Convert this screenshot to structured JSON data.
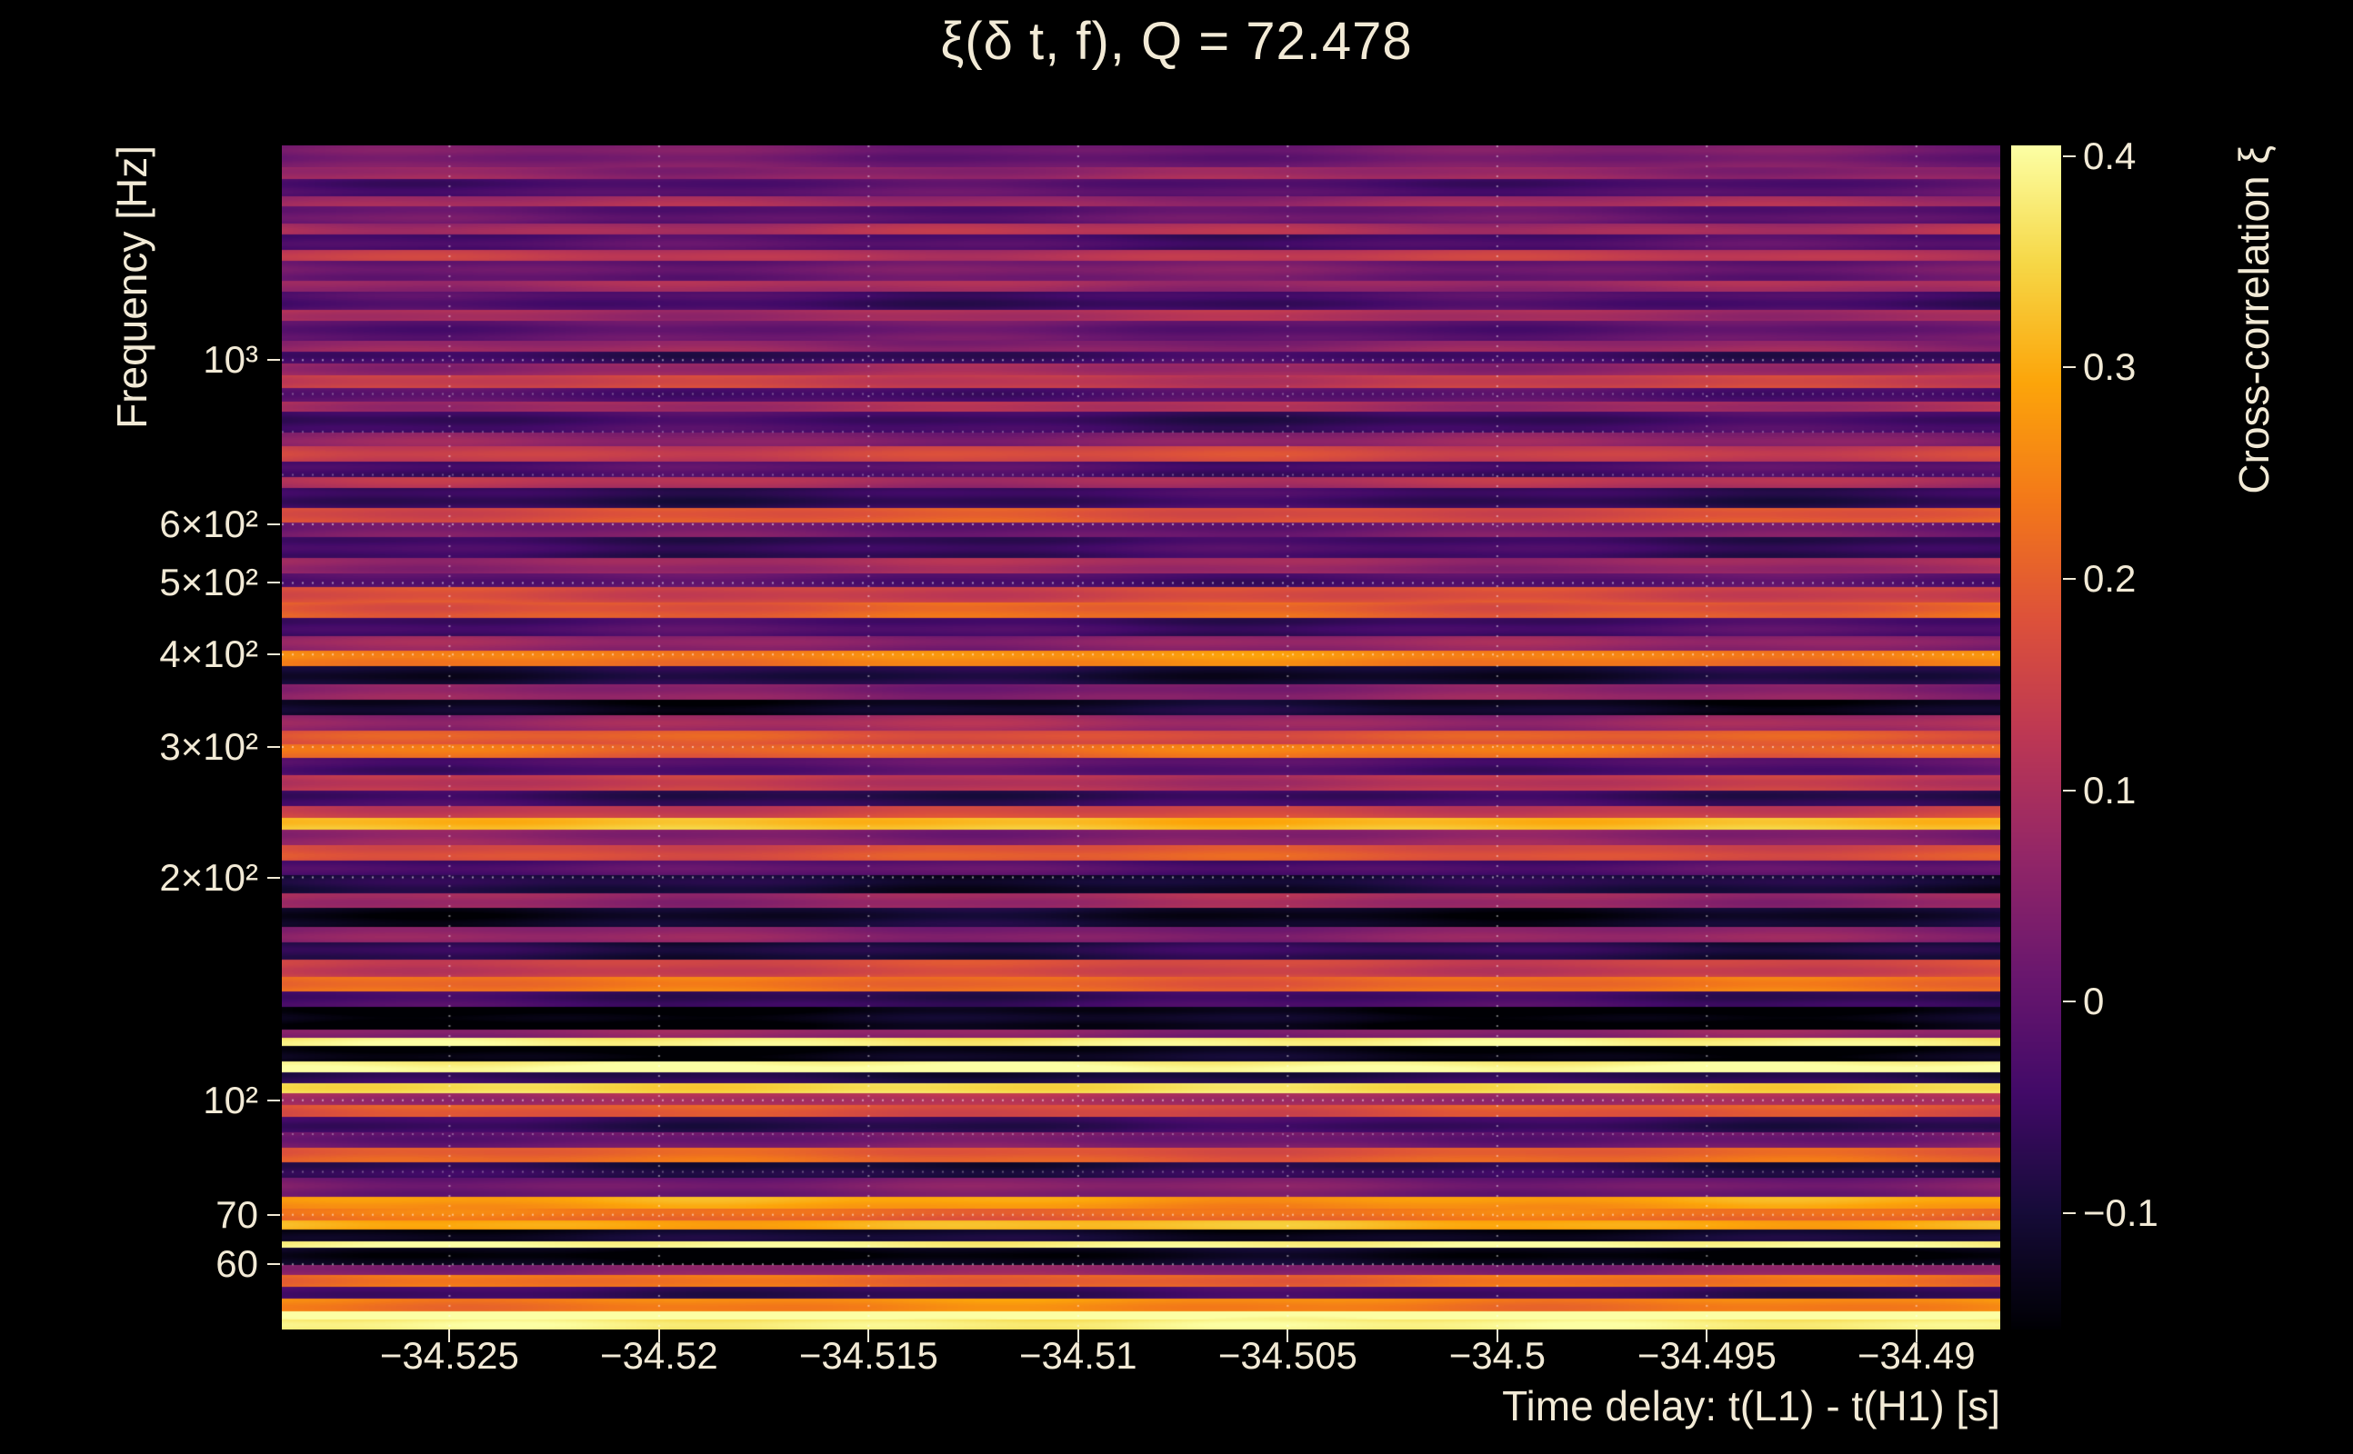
{
  "figure": {
    "background": "#000000",
    "label_color": "#f2ead6"
  },
  "chart_data": {
    "type": "heatmap",
    "title": "ξ(δ t, f), Q = 72.478",
    "xlabel": "Time delay: t(L1) - t(H1) [s]",
    "ylabel": "Frequency [Hz]",
    "colorbar_label": "Cross-correlation ξ",
    "x_range": [
      -34.529,
      -34.488
    ],
    "y_range_hz": [
      49,
      1950
    ],
    "y_scale": "log",
    "x_ticks": [
      {
        "v": -34.525,
        "label": "−34.525"
      },
      {
        "v": -34.52,
        "label": "−34.52"
      },
      {
        "v": -34.515,
        "label": "−34.515"
      },
      {
        "v": -34.51,
        "label": "−34.51"
      },
      {
        "v": -34.505,
        "label": "−34.505"
      },
      {
        "v": -34.5,
        "label": "−34.5"
      },
      {
        "v": -34.495,
        "label": "−34.495"
      },
      {
        "v": -34.49,
        "label": "−34.49"
      }
    ],
    "y_ticks": [
      {
        "f": 1000,
        "label": "10³"
      },
      {
        "f": 600,
        "label": "6×10²"
      },
      {
        "f": 500,
        "label": "5×10²"
      },
      {
        "f": 400,
        "label": "4×10²"
      },
      {
        "f": 300,
        "label": "3×10²"
      },
      {
        "f": 200,
        "label": "2×10²"
      },
      {
        "f": 100,
        "label": "10²"
      },
      {
        "f": 70,
        "label": "70"
      },
      {
        "f": 60,
        "label": "60"
      }
    ],
    "y_minor_grid_hz": [
      900,
      800,
      700,
      90,
      80
    ],
    "colorbar_ticks": [
      {
        "v": 0.4,
        "label": "0.4"
      },
      {
        "v": 0.3,
        "label": "0.3"
      },
      {
        "v": 0.2,
        "label": "0.2"
      },
      {
        "v": 0.1,
        "label": "0.1"
      },
      {
        "v": 0.0,
        "label": "0"
      },
      {
        "v": -0.1,
        "label": "−0.1"
      }
    ],
    "color_domain": [
      -0.155,
      0.405
    ],
    "colormap_name": "inferno",
    "colormap_stops": [
      [
        0.0,
        "#000004"
      ],
      [
        0.1,
        "#160b39"
      ],
      [
        0.2,
        "#420a68"
      ],
      [
        0.3,
        "#6a176e"
      ],
      [
        0.4,
        "#932667"
      ],
      [
        0.5,
        "#bc3754"
      ],
      [
        0.6,
        "#dd513a"
      ],
      [
        0.7,
        "#f37819"
      ],
      [
        0.8,
        "#fca50a"
      ],
      [
        0.9,
        "#f6d746"
      ],
      [
        1.0,
        "#fcffa4"
      ]
    ],
    "grid": {
      "color": "#ffffff",
      "style": "dotted"
    },
    "rows_format": "[fraction_from_top_of_plot, xi]",
    "xi_rows": [
      [
        0.0,
        0.02
      ],
      [
        0.018,
        0.07
      ],
      [
        0.028,
        -0.02
      ],
      [
        0.043,
        0.08
      ],
      [
        0.051,
        0.0
      ],
      [
        0.066,
        0.1
      ],
      [
        0.075,
        -0.03
      ],
      [
        0.088,
        0.12
      ],
      [
        0.097,
        0.02
      ],
      [
        0.114,
        0.08
      ],
      [
        0.123,
        -0.04
      ],
      [
        0.139,
        0.1
      ],
      [
        0.148,
        0.0
      ],
      [
        0.165,
        0.06
      ],
      [
        0.174,
        -0.05
      ],
      [
        0.184,
        0.08
      ],
      [
        0.194,
        0.14
      ],
      [
        0.205,
        -0.02
      ],
      [
        0.216,
        0.1
      ],
      [
        0.225,
        -0.05
      ],
      [
        0.242,
        0.05
      ],
      [
        0.254,
        0.15
      ],
      [
        0.267,
        -0.03
      ],
      [
        0.28,
        0.1
      ],
      [
        0.289,
        -0.06
      ],
      [
        0.306,
        0.18
      ],
      [
        0.318,
        0.02
      ],
      [
        0.331,
        -0.05
      ],
      [
        0.348,
        0.08
      ],
      [
        0.361,
        -0.02
      ],
      [
        0.373,
        0.16
      ],
      [
        0.386,
        0.2
      ],
      [
        0.399,
        -0.04
      ],
      [
        0.414,
        0.06
      ],
      [
        0.427,
        0.25
      ],
      [
        0.44,
        -0.1
      ],
      [
        0.455,
        0.05
      ],
      [
        0.468,
        -0.12
      ],
      [
        0.481,
        0.08
      ],
      [
        0.494,
        0.18
      ],
      [
        0.506,
        0.22
      ],
      [
        0.517,
        -0.02
      ],
      [
        0.532,
        0.12
      ],
      [
        0.545,
        -0.06
      ],
      [
        0.558,
        0.15
      ],
      [
        0.568,
        0.32
      ],
      [
        0.578,
        0.05
      ],
      [
        0.591,
        0.18
      ],
      [
        0.604,
        -0.02
      ],
      [
        0.616,
        -0.1
      ],
      [
        0.632,
        0.08
      ],
      [
        0.644,
        -0.12
      ],
      [
        0.66,
        0.05
      ],
      [
        0.673,
        -0.08
      ],
      [
        0.688,
        0.15
      ],
      [
        0.702,
        0.22
      ],
      [
        0.715,
        -0.05
      ],
      [
        0.728,
        -0.14
      ],
      [
        0.747,
        0.05
      ],
      [
        0.754,
        0.38
      ],
      [
        0.761,
        -0.14
      ],
      [
        0.774,
        0.4
      ],
      [
        0.783,
        -0.08
      ],
      [
        0.792,
        0.36
      ],
      [
        0.801,
        0.1
      ],
      [
        0.811,
        0.18
      ],
      [
        0.821,
        -0.06
      ],
      [
        0.834,
        0.02
      ],
      [
        0.847,
        0.2
      ],
      [
        0.859,
        -0.08
      ],
      [
        0.872,
        0.03
      ],
      [
        0.888,
        0.28
      ],
      [
        0.898,
        0.22
      ],
      [
        0.908,
        0.3
      ],
      [
        0.916,
        -0.12
      ],
      [
        0.926,
        0.4
      ],
      [
        0.931,
        -0.14
      ],
      [
        0.946,
        0.06
      ],
      [
        0.954,
        0.22
      ],
      [
        0.964,
        -0.05
      ],
      [
        0.974,
        0.25
      ],
      [
        0.985,
        0.42
      ],
      [
        0.992,
        0.38
      ]
    ]
  }
}
